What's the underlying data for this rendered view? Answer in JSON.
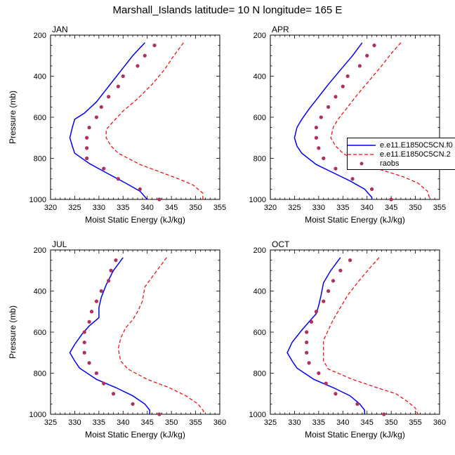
{
  "title": "Marshall_Islands  latitude= 10 N longitude= 165 E",
  "legend": [
    {
      "label": "e.e11.E1850C5CN.f0",
      "color": "#0000ff",
      "style": "solid"
    },
    {
      "label": "e.e11.E1850C5CN.2",
      "color": "#ff0000",
      "style": "dashed"
    },
    {
      "label": "raobs",
      "color": "#b03060",
      "style": "dots"
    }
  ],
  "chart_data": [
    {
      "type": "line",
      "panel": "JAN",
      "xlabel": "Moist Static Energy (kJ/kg)",
      "ylabel": "Pressure (mb)",
      "xlim": [
        320,
        355
      ],
      "ylim": [
        200,
        1000
      ],
      "xticks": [
        320,
        325,
        330,
        335,
        340,
        345,
        350,
        355
      ],
      "yticks": [
        200,
        400,
        600,
        800,
        1000
      ],
      "y_reversed": true,
      "series": [
        {
          "name": "e.e11.E1850C5CN.f0",
          "points": [
            [
              339.5,
              237
            ],
            [
              337,
              300
            ],
            [
              334.5,
              375
            ],
            [
              332,
              450
            ],
            [
              329.5,
              525
            ],
            [
              327,
              580
            ],
            [
              325,
              610
            ],
            [
              324.5,
              650
            ],
            [
              324,
              700
            ],
            [
              324.5,
              740
            ],
            [
              325,
              775
            ],
            [
              328,
              825
            ],
            [
              331.5,
              870
            ],
            [
              335.5,
              920
            ],
            [
              338.5,
              960
            ],
            [
              340,
              1000
            ]
          ]
        },
        {
          "name": "e.e11.E1850C5CN.2",
          "points": [
            [
              347.5,
              237
            ],
            [
              345.5,
              300
            ],
            [
              343.5,
              370
            ],
            [
              341,
              440
            ],
            [
              338,
              510
            ],
            [
              335,
              570
            ],
            [
              333,
              620
            ],
            [
              331.5,
              660
            ],
            [
              331.5,
              700
            ],
            [
              332.5,
              740
            ],
            [
              334,
              775
            ],
            [
              338.5,
              830
            ],
            [
              342.5,
              865
            ],
            [
              346.5,
              900
            ],
            [
              349.5,
              930
            ],
            [
              351.5,
              970
            ],
            [
              351.5,
              1000
            ]
          ]
        },
        {
          "name": "raobs",
          "points": [
            [
              341.5,
              250
            ],
            [
              339.5,
              300
            ],
            [
              338,
              350
            ],
            [
              335,
              400
            ],
            [
              334,
              450
            ],
            [
              332,
              500
            ],
            [
              330.5,
              550
            ],
            [
              329.5,
              600
            ],
            [
              328,
              650
            ],
            [
              327.5,
              700
            ],
            [
              327.5,
              750
            ],
            [
              327.5,
              800
            ],
            [
              331,
              850
            ],
            [
              334,
              900
            ],
            [
              338.5,
              950
            ],
            [
              342.5,
              1000
            ]
          ]
        }
      ]
    },
    {
      "type": "line",
      "panel": "APR",
      "xlabel": "Moist Static Energy (kJ/kg)",
      "ylabel": "",
      "xlim": [
        320,
        355
      ],
      "ylim": [
        200,
        1000
      ],
      "xticks": [
        320,
        325,
        330,
        335,
        340,
        345,
        350,
        355
      ],
      "yticks": [
        200,
        400,
        600,
        800,
        1000
      ],
      "y_reversed": true,
      "series": [
        {
          "name": "e.e11.E1850C5CN.f0",
          "points": [
            [
              339,
              237
            ],
            [
              337,
              300
            ],
            [
              334.5,
              370
            ],
            [
              332,
              440
            ],
            [
              330,
              500
            ],
            [
              328,
              560
            ],
            [
              326.5,
              610
            ],
            [
              325.5,
              650
            ],
            [
              325,
              700
            ],
            [
              325.5,
              740
            ],
            [
              326.5,
              775
            ],
            [
              329.5,
              830
            ],
            [
              333,
              870
            ],
            [
              336.5,
              910
            ],
            [
              339.5,
              950
            ],
            [
              341,
              990
            ],
            [
              341,
              1000
            ]
          ]
        },
        {
          "name": "e.e11.E1850C5CN.2",
          "points": [
            [
              347,
              237
            ],
            [
              345,
              290
            ],
            [
              343,
              350
            ],
            [
              340.5,
              420
            ],
            [
              338,
              490
            ],
            [
              336,
              550
            ],
            [
              334,
              610
            ],
            [
              333,
              650
            ],
            [
              332.5,
              700
            ],
            [
              333.5,
              740
            ],
            [
              335,
              775
            ],
            [
              339,
              830
            ],
            [
              343.5,
              860
            ],
            [
              347.5,
              890
            ],
            [
              350.5,
              920
            ],
            [
              352.5,
              960
            ],
            [
              353,
              1000
            ]
          ]
        },
        {
          "name": "raobs",
          "points": [
            [
              341.5,
              250
            ],
            [
              340,
              300
            ],
            [
              338.5,
              350
            ],
            [
              336,
              400
            ],
            [
              335,
              450
            ],
            [
              333.5,
              500
            ],
            [
              332,
              550
            ],
            [
              330.5,
              600
            ],
            [
              329.5,
              650
            ],
            [
              329.5,
              700
            ],
            [
              330,
              750
            ],
            [
              331,
              800
            ],
            [
              333.5,
              850
            ],
            [
              337,
              900
            ],
            [
              341,
              950
            ],
            [
              345,
              1000
            ]
          ]
        }
      ]
    },
    {
      "type": "line",
      "panel": "JUL",
      "xlabel": "Moist Static Energy (kJ/kg)",
      "ylabel": "Pressure (mb)",
      "xlim": [
        325,
        360
      ],
      "ylim": [
        200,
        1000
      ],
      "xticks": [
        325,
        330,
        335,
        340,
        345,
        350,
        355,
        360
      ],
      "yticks": [
        200,
        400,
        600,
        800,
        1000
      ],
      "y_reversed": true,
      "series": [
        {
          "name": "e.e11.E1850C5CN.f0",
          "points": [
            [
              340,
              237
            ],
            [
              338,
              300
            ],
            [
              336.5,
              370
            ],
            [
              335.5,
              430
            ],
            [
              335,
              480
            ],
            [
              335,
              530
            ],
            [
              333,
              570
            ],
            [
              331.5,
              610
            ],
            [
              330,
              660
            ],
            [
              329,
              700
            ],
            [
              330,
              740
            ],
            [
              331,
              775
            ],
            [
              334.5,
              830
            ],
            [
              338.5,
              870
            ],
            [
              342,
              910
            ],
            [
              344.5,
              950
            ],
            [
              345.5,
              980
            ],
            [
              345.5,
              1000
            ]
          ]
        },
        {
          "name": "e.e11.E1850C5CN.2",
          "points": [
            [
              349,
              237
            ],
            [
              347,
              300
            ],
            [
              344.5,
              380
            ],
            [
              344,
              450
            ],
            [
              343,
              500
            ],
            [
              342,
              540
            ],
            [
              340.5,
              580
            ],
            [
              339.5,
              630
            ],
            [
              339,
              680
            ],
            [
              339.5,
              740
            ],
            [
              341,
              780
            ],
            [
              345,
              830
            ],
            [
              349.5,
              870
            ],
            [
              353,
              910
            ],
            [
              355.5,
              950
            ],
            [
              356.5,
              980
            ],
            [
              357,
              1000
            ]
          ]
        },
        {
          "name": "raobs",
          "points": [
            [
              338.5,
              250
            ],
            [
              337.5,
              300
            ],
            [
              337,
              350
            ],
            [
              335.5,
              400
            ],
            [
              334.5,
              450
            ],
            [
              333.5,
              500
            ],
            [
              333,
              550
            ],
            [
              332,
              600
            ],
            [
              332,
              650
            ],
            [
              332,
              700
            ],
            [
              333,
              750
            ],
            [
              334.5,
              800
            ],
            [
              336,
              850
            ],
            [
              338,
              900
            ],
            [
              342,
              950
            ],
            [
              347.5,
              1000
            ]
          ]
        }
      ]
    },
    {
      "type": "line",
      "panel": "OCT",
      "xlabel": "Moist Static Energy (kJ/kg)",
      "ylabel": "",
      "xlim": [
        325,
        360
      ],
      "ylim": [
        200,
        1000
      ],
      "xticks": [
        325,
        330,
        335,
        340,
        345,
        350,
        355,
        360
      ],
      "yticks": [
        200,
        400,
        600,
        800,
        1000
      ],
      "y_reversed": true,
      "series": [
        {
          "name": "e.e11.E1850C5CN.f0",
          "points": [
            [
              339.5,
              237
            ],
            [
              337.5,
              300
            ],
            [
              336,
              360
            ],
            [
              335.5,
              420
            ],
            [
              335,
              470
            ],
            [
              334.5,
              510
            ],
            [
              333,
              550
            ],
            [
              331.5,
              590
            ],
            [
              329.5,
              650
            ],
            [
              328.5,
              700
            ],
            [
              329.5,
              740
            ],
            [
              330.5,
              775
            ],
            [
              334,
              830
            ],
            [
              338,
              870
            ],
            [
              341.5,
              910
            ],
            [
              343.5,
              950
            ],
            [
              344.5,
              980
            ],
            [
              344.5,
              1000
            ]
          ]
        },
        {
          "name": "e.e11.E1850C5CN.2",
          "points": [
            [
              347.5,
              237
            ],
            [
              345.5,
              290
            ],
            [
              343,
              360
            ],
            [
              341,
              420
            ],
            [
              339.5,
              480
            ],
            [
              338,
              540
            ],
            [
              337,
              590
            ],
            [
              336,
              640
            ],
            [
              336,
              690
            ],
            [
              336,
              740
            ],
            [
              337,
              780
            ],
            [
              342,
              830
            ],
            [
              347,
              870
            ],
            [
              351,
              900
            ],
            [
              353.5,
              940
            ],
            [
              355,
              970
            ],
            [
              355.5,
              1000
            ]
          ]
        },
        {
          "name": "raobs",
          "points": [
            [
              341.5,
              250
            ],
            [
              339.5,
              300
            ],
            [
              338,
              350
            ],
            [
              337,
              400
            ],
            [
              336,
              450
            ],
            [
              334.5,
              500
            ],
            [
              333.5,
              550
            ],
            [
              332.5,
              600
            ],
            [
              332.5,
              650
            ],
            [
              332.5,
              700
            ],
            [
              333,
              750
            ],
            [
              335,
              800
            ],
            [
              336.5,
              850
            ],
            [
              338.5,
              900
            ],
            [
              343,
              950
            ],
            [
              348.5,
              1000
            ]
          ]
        }
      ]
    }
  ]
}
